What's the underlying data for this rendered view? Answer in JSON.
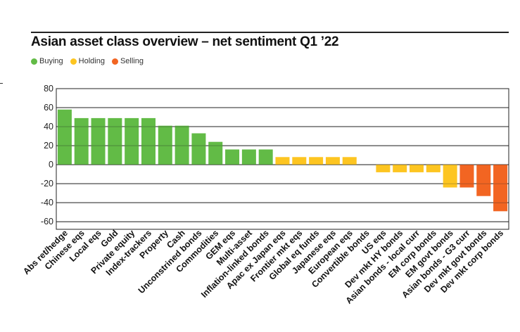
{
  "title": "Asian asset class overview – net sentiment Q1 ’22",
  "legend": [
    {
      "label": "Buying",
      "color": "#62bb46"
    },
    {
      "label": "Holding",
      "color": "#fdc521"
    },
    {
      "label": "Selling",
      "color": "#f26522"
    }
  ],
  "chart_data": {
    "type": "bar",
    "title": "Asian asset class overview – net sentiment Q1 ’22",
    "xlabel": "",
    "ylabel": "",
    "ylim": [
      -68,
      80
    ],
    "yticks": [
      80,
      60,
      40,
      20,
      0,
      -20,
      -40,
      -60
    ],
    "grid": true,
    "legend_position": "top-left",
    "categories": [
      "Abs ret/hedge",
      "Chinese eqs",
      "Local eqs",
      "Gold",
      "Private equity",
      "Index-trackers",
      "Property",
      "Cash",
      "Unconstrined bonds",
      "Commodities",
      "GEM eqs",
      "Multi-asset",
      "Inflation-linked bonds",
      "Apac ex Japan eqs",
      "Frontier mkt eqs",
      "Global eq funds",
      "Japanese eqs",
      "European eqs",
      "Convertible bonds",
      "US eqs",
      "Dev mkt HY bonds",
      "Asian bonds - local curr",
      "EM corp bonds",
      "EM govt bonds",
      "Asian bonds - G3 curr",
      "Dev mkt govt bonds",
      "Dev mkt corp bonds"
    ],
    "values": [
      58,
      49,
      49,
      49,
      49,
      49,
      41,
      41,
      33,
      24,
      16,
      16,
      16,
      8,
      8,
      8,
      8,
      8,
      0,
      -8,
      -8,
      -8,
      -8,
      -24,
      -24,
      -33,
      -49
    ],
    "sentiment": [
      "Buying",
      "Buying",
      "Buying",
      "Buying",
      "Buying",
      "Buying",
      "Buying",
      "Buying",
      "Buying",
      "Buying",
      "Buying",
      "Buying",
      "Buying",
      "Holding",
      "Holding",
      "Holding",
      "Holding",
      "Holding",
      "Holding",
      "Holding",
      "Holding",
      "Holding",
      "Holding",
      "Holding",
      "Selling",
      "Selling",
      "Selling"
    ]
  }
}
